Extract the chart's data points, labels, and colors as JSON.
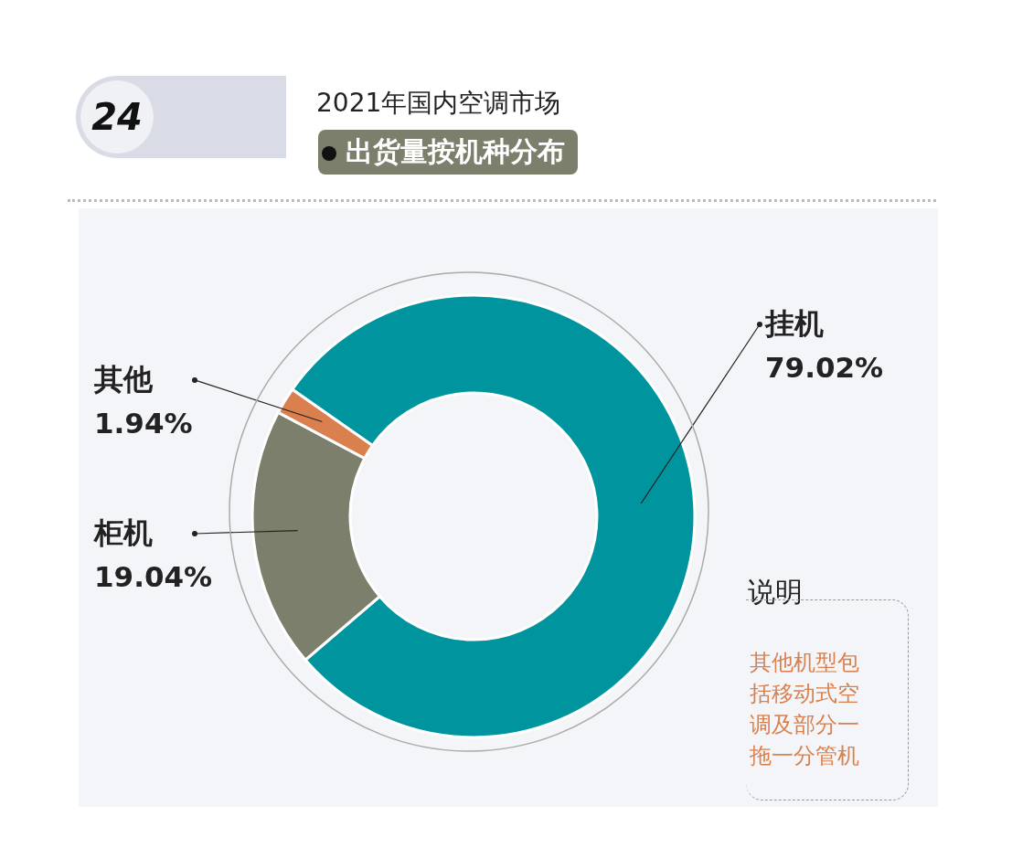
{
  "chart_data": {
    "type": "donut",
    "title": "2021年国内空调市场",
    "subtitle": "出货量按机种分布",
    "categories": [
      "挂机",
      "柜机",
      "其他"
    ],
    "values": [
      79.02,
      19.04,
      1.94
    ],
    "value_labels": [
      "79.02%",
      "19.04%",
      "1.94%"
    ],
    "colors": [
      "#00959e",
      "#7b7f6c",
      "#d9804e"
    ],
    "annotations": [
      "24",
      "说明",
      "其他机型包括移动式空调及部分一拖一分管机"
    ]
  }
}
